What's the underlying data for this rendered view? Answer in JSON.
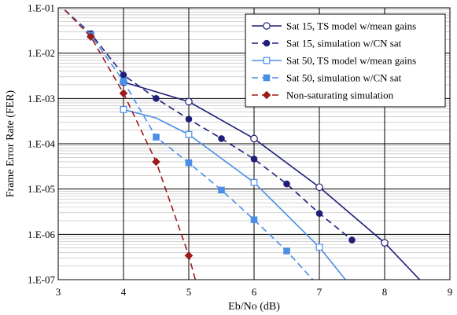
{
  "chart_data": {
    "type": "line",
    "xlabel": "Eb/No (dB)",
    "ylabel": "Frame Error Rate (FER)",
    "xlim": [
      3,
      9
    ],
    "ylim": [
      1e-07,
      0.1
    ],
    "yscale": "log",
    "grid": true,
    "legend_position": "top-right",
    "x_ticks": [
      3,
      4,
      5,
      6,
      7,
      8,
      9
    ],
    "y_ticks": [
      {
        "value": 0.1,
        "label": "1.E-01"
      },
      {
        "value": 0.01,
        "label": "1.E-02"
      },
      {
        "value": 0.001,
        "label": "1.E-03"
      },
      {
        "value": 0.0001,
        "label": "1.E-04"
      },
      {
        "value": 1e-05,
        "label": "1.E-05"
      },
      {
        "value": 1e-06,
        "label": "1.E-06"
      },
      {
        "value": 1e-07,
        "label": "1.E-07"
      }
    ],
    "series": [
      {
        "name": "Sat 15, TS model w/mean gains",
        "color": "#1f1f7a",
        "dash": false,
        "marker": "circle-open",
        "x": [
          4,
          4.5,
          5,
          6,
          7,
          8,
          8.6
        ],
        "y": [
          0.0023,
          0.0014,
          0.00085,
          0.00013,
          1.1e-05,
          6.5e-07,
          8e-08
        ],
        "marked": [
          true,
          false,
          true,
          true,
          true,
          true,
          false
        ]
      },
      {
        "name": "Sat 15, simulation w/CN sat",
        "color": "#1f1f7a",
        "dash": true,
        "marker": "circle-filled",
        "x": [
          3.1,
          3.5,
          4,
          4.5,
          5,
          5.5,
          6,
          6.5,
          7,
          7.5
        ],
        "y": [
          0.09,
          0.027,
          0.0033,
          0.001,
          0.00035,
          0.00013,
          4.6e-05,
          1.3e-05,
          2.9e-06,
          7.5e-07
        ],
        "marked": [
          false,
          true,
          true,
          true,
          true,
          true,
          true,
          true,
          true,
          true
        ]
      },
      {
        "name": "Sat 50, TS model w/mean gains",
        "color": "#4a8ee6",
        "dash": false,
        "marker": "square-open",
        "x": [
          4,
          4.5,
          5,
          6,
          7,
          7.4
        ],
        "y": [
          0.00057,
          0.00037,
          0.00016,
          1.4e-05,
          5.2e-07,
          1e-07
        ],
        "marked": [
          true,
          false,
          true,
          true,
          true,
          false
        ]
      },
      {
        "name": "Sat 50, simulation w/CN sat",
        "color": "#4a8ee6",
        "dash": true,
        "marker": "square-filled",
        "x": [
          3.1,
          3.5,
          4,
          4.5,
          5,
          5.5,
          6,
          6.5,
          6.9
        ],
        "y": [
          0.09,
          0.025,
          0.0024,
          0.00014,
          3.8e-05,
          9.5e-06,
          2.1e-06,
          4.3e-07,
          1e-07
        ],
        "marked": [
          false,
          true,
          true,
          true,
          true,
          true,
          true,
          true,
          false
        ]
      },
      {
        "name": "Non-saturating simulation",
        "color": "#9b1b1b",
        "dash": true,
        "marker": "diamond-filled",
        "x": [
          3.1,
          3.5,
          4,
          4.5,
          5,
          5.1
        ],
        "y": [
          0.09,
          0.023,
          0.0013,
          4e-05,
          3.4e-07,
          1e-07
        ],
        "marked": [
          false,
          true,
          true,
          true,
          true,
          false
        ]
      }
    ]
  }
}
